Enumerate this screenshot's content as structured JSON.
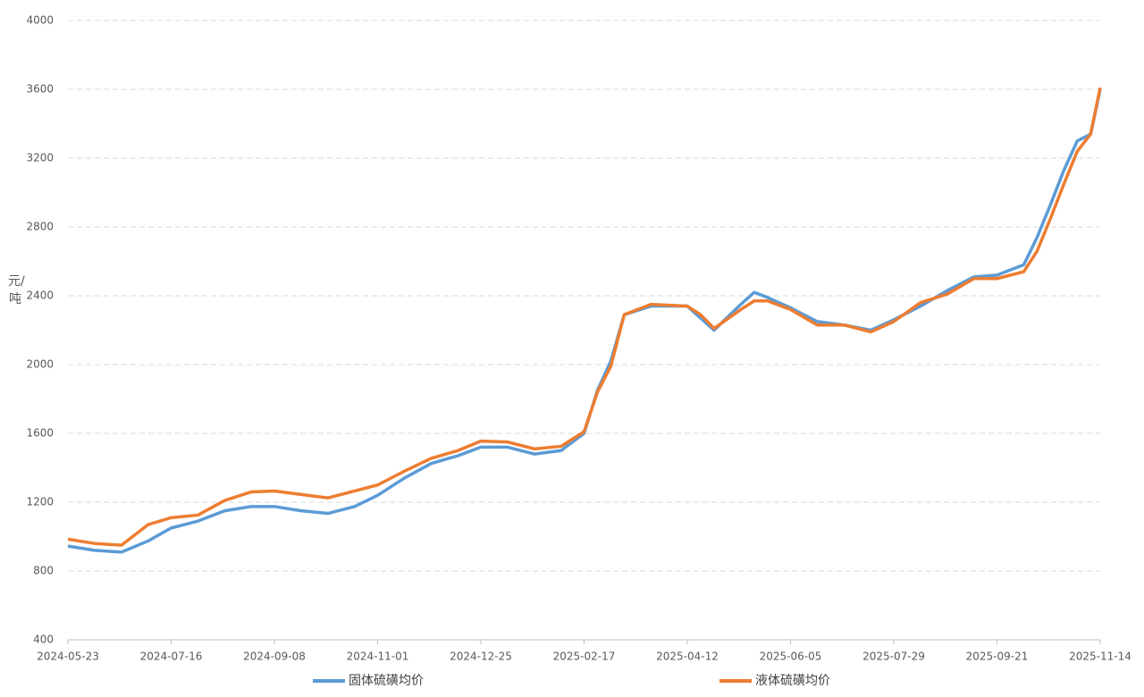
{
  "chart_data": {
    "type": "line",
    "y_label": "元/吨",
    "x": [
      "2024-05-23",
      "2024-06-06",
      "2024-06-20",
      "2024-07-04",
      "2024-07-16",
      "2024-07-30",
      "2024-08-13",
      "2024-08-27",
      "2024-09-08",
      "2024-09-22",
      "2024-10-06",
      "2024-10-20",
      "2024-11-01",
      "2024-11-15",
      "2024-11-29",
      "2024-12-13",
      "2024-12-25",
      "2025-01-08",
      "2025-01-22",
      "2025-02-05",
      "2025-02-17",
      "2025-02-24",
      "2025-03-03",
      "2025-03-10",
      "2025-03-24",
      "2025-04-12",
      "2025-04-19",
      "2025-04-26",
      "2025-05-10",
      "2025-05-17",
      "2025-05-24",
      "2025-06-05",
      "2025-06-19",
      "2025-07-03",
      "2025-07-17",
      "2025-07-29",
      "2025-08-12",
      "2025-08-26",
      "2025-09-09",
      "2025-09-21",
      "2025-10-05",
      "2025-10-12",
      "2025-10-19",
      "2025-10-26",
      "2025-11-02",
      "2025-11-09",
      "2025-11-14"
    ],
    "series": [
      {
        "name": "固体硫磺均价",
        "color": "#5b9bd5",
        "values": [
          945,
          920,
          910,
          975,
          1050,
          1090,
          1150,
          1175,
          1175,
          1150,
          1135,
          1175,
          1240,
          1340,
          1425,
          1470,
          1520,
          1520,
          1480,
          1500,
          1600,
          1850,
          2020,
          2290,
          2340,
          2340,
          2270,
          2200,
          2350,
          2420,
          2390,
          2330,
          2250,
          2230,
          2200,
          2260,
          2340,
          2430,
          2510,
          2520,
          2580,
          2740,
          2930,
          3130,
          3300,
          3340,
          3600
        ]
      },
      {
        "name": "液体硫磺均价",
        "color": "#ed7d31",
        "values": [
          985,
          960,
          950,
          1070,
          1110,
          1125,
          1210,
          1260,
          1265,
          1245,
          1225,
          1265,
          1300,
          1380,
          1455,
          1500,
          1555,
          1550,
          1510,
          1525,
          1610,
          1840,
          1990,
          2290,
          2350,
          2340,
          2290,
          2210,
          2320,
          2370,
          2370,
          2320,
          2230,
          2230,
          2190,
          2250,
          2360,
          2410,
          2500,
          2500,
          2540,
          2660,
          2850,
          3050,
          3240,
          3340,
          3610
        ]
      }
    ],
    "xlim": [
      "2024-05-23",
      "2025-11-14"
    ],
    "xticks": [
      "2024-05-23",
      "2024-07-16",
      "2024-09-08",
      "2024-11-01",
      "2024-12-25",
      "2025-02-17",
      "2025-04-12",
      "2025-06-05",
      "2025-07-29",
      "2025-09-21",
      "2025-11-14"
    ],
    "ylim": [
      400,
      4000
    ],
    "yticks": [
      400,
      800,
      1200,
      1600,
      2000,
      2400,
      2800,
      3200,
      3600,
      4000
    ],
    "grid": true,
    "legend": "bottom"
  }
}
